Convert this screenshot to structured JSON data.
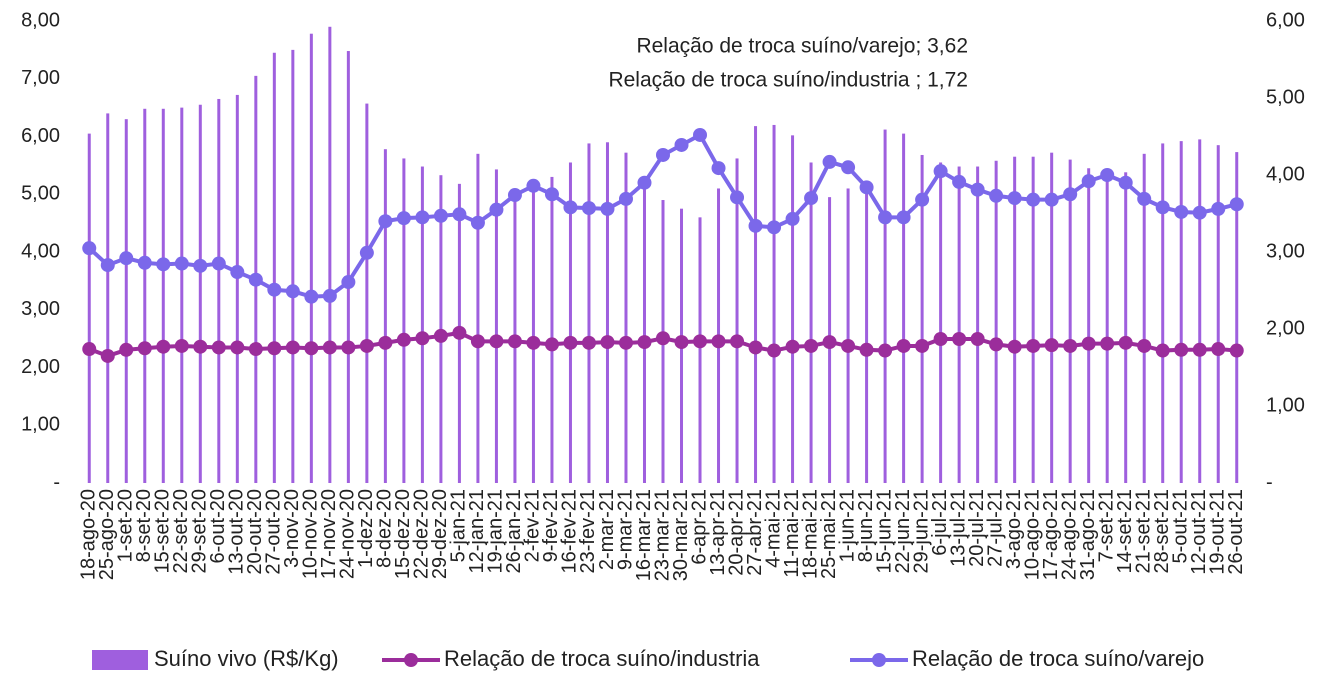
{
  "chart_data": {
    "type": "combo",
    "categories": [
      "18-ago-20",
      "25-ago-20",
      "1-set-20",
      "8-set-20",
      "15-set-20",
      "22-set-20",
      "29-set-20",
      "6-out-20",
      "13-out-20",
      "20-out-20",
      "27-out-20",
      "3-nov-20",
      "10-nov-20",
      "17-nov-20",
      "24-nov-20",
      "1-dez-20",
      "8-dez-20",
      "15-dez-20",
      "22-dez-20",
      "29-dez-20",
      "5-jan-21",
      "12-jan-21",
      "19-jan-21",
      "26-jan-21",
      "2-fev-21",
      "9-fev-21",
      "16-fev-21",
      "23-fev-21",
      "2-mar-21",
      "9-mar-21",
      "16-mar-21",
      "23-mar-21",
      "30-mar-21",
      "6-apr-21",
      "13-apr-21",
      "20-apr-21",
      "27-abr-21",
      "4-mai-21",
      "11-mai-21",
      "18-mai-21",
      "25-mai-21",
      "1-jun-21",
      "8-jun-21",
      "15-jun-21",
      "22-jun-21",
      "29-jun-21",
      "6-jul-21",
      "13-jul-21",
      "20-jul-21",
      "27-jul-21",
      "3-ago-21",
      "10-ago-21",
      "17-ago-21",
      "24-ago-21",
      "31-ago-21",
      "7-set-21",
      "14-set-21",
      "21-set-21",
      "28-set-21",
      "5-out-21",
      "12-out-21",
      "19-out-21",
      "26-out-21"
    ],
    "series": [
      {
        "name": "Suíno vivo (R$/Kg)",
        "type": "bar",
        "axis": "y",
        "color": "#9f5fde",
        "values": [
          6.05,
          6.4,
          6.3,
          6.48,
          6.48,
          6.5,
          6.55,
          6.65,
          6.72,
          7.05,
          7.45,
          7.5,
          7.78,
          7.9,
          7.48,
          6.57,
          5.78,
          5.62,
          5.48,
          5.33,
          5.18,
          5.7,
          5.43,
          5.08,
          5.15,
          5.3,
          5.55,
          5.88,
          5.9,
          5.72,
          5.25,
          4.9,
          4.75,
          4.6,
          5.1,
          5.62,
          6.18,
          6.2,
          6.02,
          5.55,
          4.95,
          5.1,
          5.2,
          6.12,
          6.05,
          5.68,
          5.55,
          5.48,
          5.48,
          5.58,
          5.65,
          5.65,
          5.72,
          5.6,
          5.45,
          5.4,
          5.38,
          5.7,
          5.88,
          5.92,
          5.95,
          5.85,
          5.73
        ]
      },
      {
        "name": "Relação de troca suíno/industria",
        "type": "line",
        "axis": "y2",
        "color": "#9b2d9b",
        "values": [
          1.74,
          1.65,
          1.73,
          1.75,
          1.77,
          1.78,
          1.77,
          1.76,
          1.76,
          1.74,
          1.75,
          1.76,
          1.75,
          1.76,
          1.76,
          1.78,
          1.82,
          1.86,
          1.88,
          1.91,
          1.95,
          1.84,
          1.84,
          1.84,
          1.82,
          1.8,
          1.82,
          1.82,
          1.83,
          1.82,
          1.83,
          1.88,
          1.83,
          1.84,
          1.84,
          1.84,
          1.76,
          1.72,
          1.77,
          1.78,
          1.83,
          1.78,
          1.73,
          1.72,
          1.78,
          1.78,
          1.87,
          1.87,
          1.87,
          1.8,
          1.77,
          1.78,
          1.79,
          1.78,
          1.81,
          1.81,
          1.82,
          1.78,
          1.72,
          1.73,
          1.73,
          1.74,
          1.72
        ]
      },
      {
        "name": "Relação de troca suíno/varejo",
        "type": "line",
        "axis": "y2",
        "color": "#7b68ea",
        "values": [
          3.05,
          2.83,
          2.92,
          2.86,
          2.84,
          2.85,
          2.82,
          2.85,
          2.74,
          2.64,
          2.51,
          2.49,
          2.42,
          2.43,
          2.61,
          2.99,
          3.4,
          3.44,
          3.45,
          3.47,
          3.49,
          3.38,
          3.55,
          3.74,
          3.86,
          3.75,
          3.58,
          3.57,
          3.56,
          3.69,
          3.9,
          4.26,
          4.39,
          4.52,
          4.09,
          3.71,
          3.34,
          3.32,
          3.43,
          3.7,
          4.17,
          4.1,
          3.84,
          3.45,
          3.45,
          3.68,
          4.05,
          3.91,
          3.81,
          3.73,
          3.7,
          3.68,
          3.68,
          3.75,
          3.92,
          4.0,
          3.9,
          3.69,
          3.58,
          3.52,
          3.51,
          3.56,
          3.62
        ]
      }
    ],
    "ylim": [
      0,
      8
    ],
    "yticks": [
      {
        "value": 0,
        "label": "-"
      },
      {
        "value": 1,
        "label": "1,00"
      },
      {
        "value": 2,
        "label": "2,00"
      },
      {
        "value": 3,
        "label": "3,00"
      },
      {
        "value": 4,
        "label": "4,00"
      },
      {
        "value": 5,
        "label": "5,00"
      },
      {
        "value": 6,
        "label": "6,00"
      },
      {
        "value": 7,
        "label": "7,00"
      },
      {
        "value": 8,
        "label": "8,00"
      }
    ],
    "y2lim": [
      0,
      6
    ],
    "y2ticks": [
      {
        "value": 0,
        "label": "-"
      },
      {
        "value": 1,
        "label": "1,00"
      },
      {
        "value": 2,
        "label": "2,00"
      },
      {
        "value": 3,
        "label": "3,00"
      },
      {
        "value": 4,
        "label": "4,00"
      },
      {
        "value": 5,
        "label": "5,00"
      },
      {
        "value": 6,
        "label": "6,00"
      }
    ],
    "annotations": [
      "Relação de troca suíno/varejo; 3,62",
      "Relação de troca suíno/industria ; 1,72"
    ],
    "legend": "bottom",
    "grid": false
  }
}
